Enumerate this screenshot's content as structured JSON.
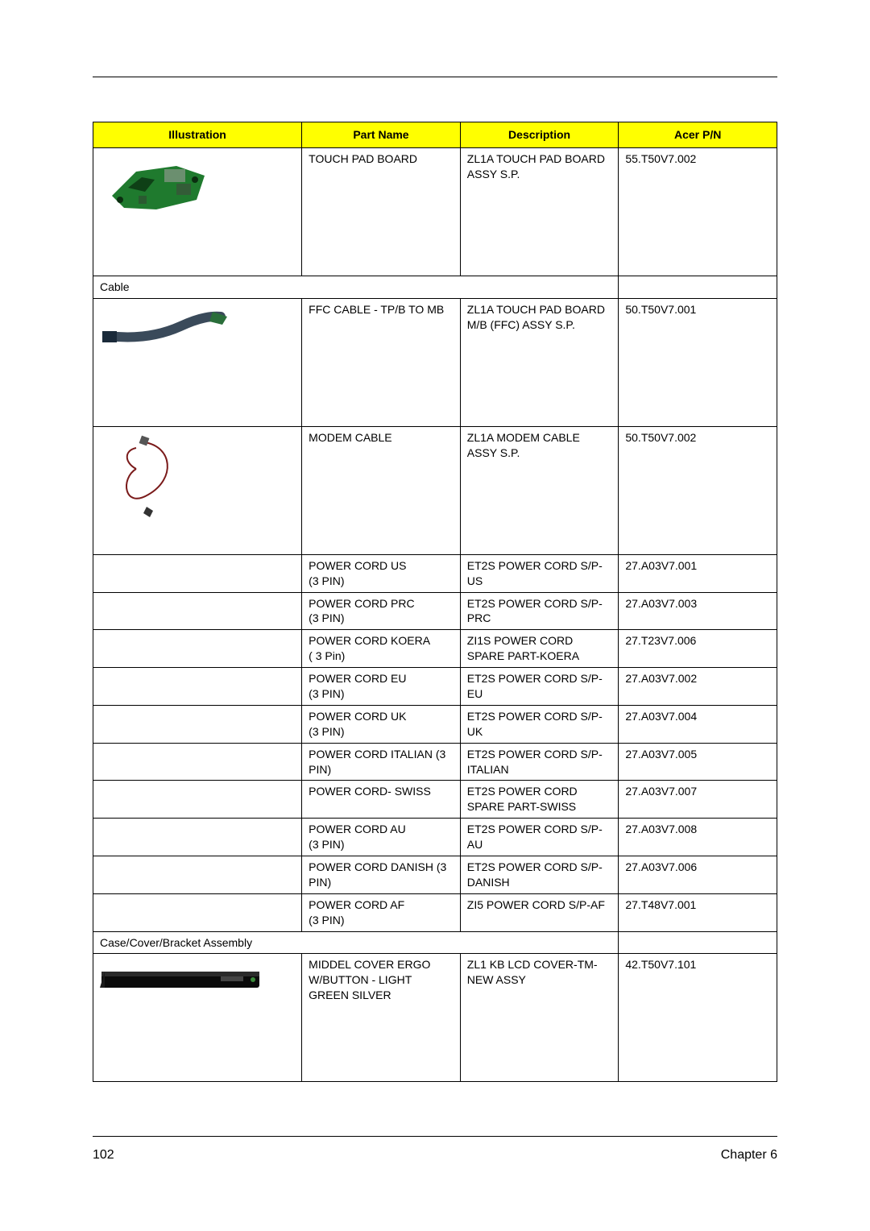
{
  "table": {
    "header_bg": "#ffff00",
    "columns": {
      "illustration": "Illustration",
      "part_name": "Part Name",
      "description": "Description",
      "acer_pn": "Acer P/N"
    }
  },
  "rows": [
    {
      "type": "part",
      "illus": "touchpad",
      "part_name": "TOUCH PAD BOARD",
      "description": "ZL1A TOUCH PAD BOARD ASSY S.P.",
      "pn": "55.T50V7.002"
    },
    {
      "type": "category",
      "label": "Cable"
    },
    {
      "type": "part",
      "illus": "ffc",
      "part_name": "FFC CABLE - TP/B TO MB",
      "description": "ZL1A TOUCH PAD BOARD M/B (FFC) ASSY S.P.",
      "pn": "50.T50V7.001"
    },
    {
      "type": "part",
      "illus": "modem",
      "part_name": "MODEM CABLE",
      "description": "ZL1A MODEM CABLE ASSY S.P.",
      "pn": "50.T50V7.002"
    },
    {
      "type": "part",
      "illus": "",
      "part_name": "POWER CORD US\n(3 PIN)",
      "description": "ET2S POWER CORD S/P-US",
      "pn": "27.A03V7.001"
    },
    {
      "type": "part",
      "illus": "",
      "part_name": "POWER CORD PRC\n(3 PIN)",
      "description": "ET2S POWER CORD S/P-PRC",
      "pn": "27.A03V7.003"
    },
    {
      "type": "part",
      "illus": "",
      "part_name": "POWER CORD KOERA\n( 3 Pin)",
      "description": "ZI1S POWER CORD SPARE PART-KOERA",
      "pn": "27.T23V7.006"
    },
    {
      "type": "part",
      "illus": "",
      "part_name": "POWER CORD EU\n(3 PIN)",
      "description": "ET2S POWER CORD S/P-EU",
      "pn": "27.A03V7.002"
    },
    {
      "type": "part",
      "illus": "",
      "part_name": "POWER CORD UK\n(3 PIN)",
      "description": "ET2S POWER CORD S/P-UK",
      "pn": "27.A03V7.004"
    },
    {
      "type": "part",
      "illus": "",
      "part_name": "POWER CORD ITALIAN (3 PIN)",
      "description": "ET2S POWER CORD S/P-ITALIAN",
      "pn": "27.A03V7.005"
    },
    {
      "type": "part",
      "illus": "",
      "part_name": "POWER CORD- SWISS",
      "description": "ET2S POWER CORD SPARE PART-SWISS",
      "pn": "27.A03V7.007"
    },
    {
      "type": "part",
      "illus": "",
      "part_name": "POWER CORD AU\n(3 PIN)",
      "description": "ET2S POWER CORD S/P-AU",
      "pn": "27.A03V7.008"
    },
    {
      "type": "part",
      "illus": "",
      "part_name": "POWER CORD DANISH (3 PIN)",
      "description": "ET2S POWER CORD S/P-DANISH",
      "pn": "27.A03V7.006"
    },
    {
      "type": "part",
      "illus": "",
      "part_name": "POWER CORD AF\n(3 PIN)",
      "description": "ZI5 POWER CORD S/P-AF",
      "pn": "27.T48V7.001"
    },
    {
      "type": "category",
      "label": "Case/Cover/Bracket Assembly"
    },
    {
      "type": "part",
      "illus": "cover",
      "part_name": "MIDDEL COVER ERGO W/BUTTON - LIGHT GREEN SILVER",
      "description": "ZL1 KB LCD COVER-TM-NEW ASSY",
      "pn": "42.T50V7.101"
    }
  ],
  "footer": {
    "page_number": "102",
    "chapter": "Chapter 6"
  }
}
